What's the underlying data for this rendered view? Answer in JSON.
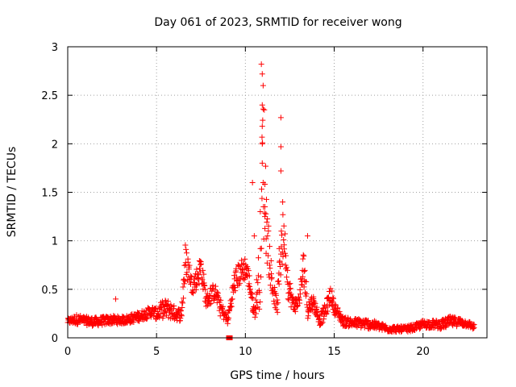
{
  "chart_data": {
    "type": "scatter",
    "title": "Day 061 of 2023, SRMTID for receiver wong",
    "xlabel": "GPS time / hours",
    "ylabel": "SRMTID / TECUs",
    "xlim": [
      0,
      23.6
    ],
    "ylim": [
      0,
      3
    ],
    "xticks": [
      0,
      5,
      10,
      15,
      20
    ],
    "yticks": [
      0,
      0.5,
      1,
      1.5,
      2,
      2.5,
      3
    ],
    "xtick_labels": [
      "0",
      "5",
      "10",
      "15",
      "20"
    ],
    "ytick_labels": [
      "0",
      "0.5",
      "1",
      "1.5",
      "2",
      "2.5",
      "3"
    ],
    "grid": true,
    "marker": "+",
    "color": "#ff0000",
    "series": [
      {
        "name": "SRMTID",
        "envelope": [
          [
            0.0,
            0.14,
            0.2
          ],
          [
            0.5,
            0.14,
            0.24
          ],
          [
            1.0,
            0.13,
            0.22
          ],
          [
            1.5,
            0.12,
            0.21
          ],
          [
            2.0,
            0.13,
            0.22
          ],
          [
            2.5,
            0.14,
            0.23
          ],
          [
            3.0,
            0.14,
            0.22
          ],
          [
            3.5,
            0.15,
            0.24
          ],
          [
            4.0,
            0.17,
            0.27
          ],
          [
            4.5,
            0.2,
            0.31
          ],
          [
            4.8,
            0.22,
            0.33
          ],
          [
            5.0,
            0.18,
            0.3
          ],
          [
            5.3,
            0.2,
            0.38
          ],
          [
            5.6,
            0.2,
            0.4
          ],
          [
            6.0,
            0.18,
            0.33
          ],
          [
            6.4,
            0.17,
            0.3
          ],
          [
            6.6,
            0.5,
            1.0
          ],
          [
            6.8,
            0.6,
            0.85
          ],
          [
            7.0,
            0.45,
            0.6
          ],
          [
            7.3,
            0.5,
            0.75
          ],
          [
            7.5,
            0.6,
            0.88
          ],
          [
            7.8,
            0.3,
            0.45
          ],
          [
            8.1,
            0.35,
            0.55
          ],
          [
            8.3,
            0.4,
            0.55
          ],
          [
            8.6,
            0.22,
            0.4
          ],
          [
            9.0,
            0.14,
            0.22
          ],
          [
            9.4,
            0.45,
            0.7
          ],
          [
            9.7,
            0.55,
            0.8
          ],
          [
            10.0,
            0.6,
            0.85
          ],
          [
            10.2,
            0.5,
            0.7
          ],
          [
            10.5,
            0.2,
            0.3
          ],
          [
            10.8,
            0.3,
            1.0
          ],
          [
            11.0,
            1.0,
            2.8
          ],
          [
            11.2,
            0.8,
            1.6
          ],
          [
            11.4,
            0.55,
            0.9
          ],
          [
            11.6,
            0.35,
            0.55
          ],
          [
            11.8,
            0.25,
            0.4
          ],
          [
            12.0,
            0.6,
            1.4
          ],
          [
            12.2,
            0.85,
            1.2
          ],
          [
            12.4,
            0.4,
            0.7
          ],
          [
            12.7,
            0.25,
            0.4
          ],
          [
            13.0,
            0.3,
            0.45
          ],
          [
            13.3,
            0.55,
            0.95
          ],
          [
            13.5,
            0.2,
            0.4
          ],
          [
            13.8,
            0.3,
            0.45
          ],
          [
            14.2,
            0.12,
            0.25
          ],
          [
            14.5,
            0.2,
            0.35
          ],
          [
            14.8,
            0.35,
            0.55
          ],
          [
            15.0,
            0.25,
            0.38
          ],
          [
            15.5,
            0.12,
            0.22
          ],
          [
            16.0,
            0.11,
            0.2
          ],
          [
            16.5,
            0.1,
            0.2
          ],
          [
            17.0,
            0.09,
            0.19
          ],
          [
            17.5,
            0.08,
            0.16
          ],
          [
            18.0,
            0.06,
            0.13
          ],
          [
            18.5,
            0.06,
            0.12
          ],
          [
            19.0,
            0.06,
            0.12
          ],
          [
            19.5,
            0.07,
            0.14
          ],
          [
            20.0,
            0.1,
            0.18
          ],
          [
            20.5,
            0.1,
            0.18
          ],
          [
            21.0,
            0.09,
            0.18
          ],
          [
            21.5,
            0.11,
            0.22
          ],
          [
            22.0,
            0.12,
            0.21
          ],
          [
            22.5,
            0.11,
            0.18
          ],
          [
            22.9,
            0.08,
            0.14
          ]
        ],
        "outliers": [
          [
            2.7,
            0.4
          ],
          [
            10.4,
            1.6
          ],
          [
            10.5,
            1.05
          ],
          [
            10.9,
            2.82
          ],
          [
            10.95,
            2.72
          ],
          [
            11.0,
            2.6
          ],
          [
            10.95,
            2.4
          ],
          [
            10.95,
            2.18
          ],
          [
            10.95,
            2.0
          ],
          [
            10.95,
            1.8
          ],
          [
            11.0,
            1.6
          ],
          [
            11.1,
            1.35
          ],
          [
            12.0,
            2.27
          ],
          [
            12.0,
            1.97
          ],
          [
            12.0,
            1.72
          ],
          [
            12.1,
            1.4
          ],
          [
            13.5,
            1.05
          ],
          [
            11.1,
            1.25
          ],
          [
            11.25,
            1.05
          ]
        ],
        "square_marker": [
          9.1,
          0.0
        ]
      }
    ]
  }
}
